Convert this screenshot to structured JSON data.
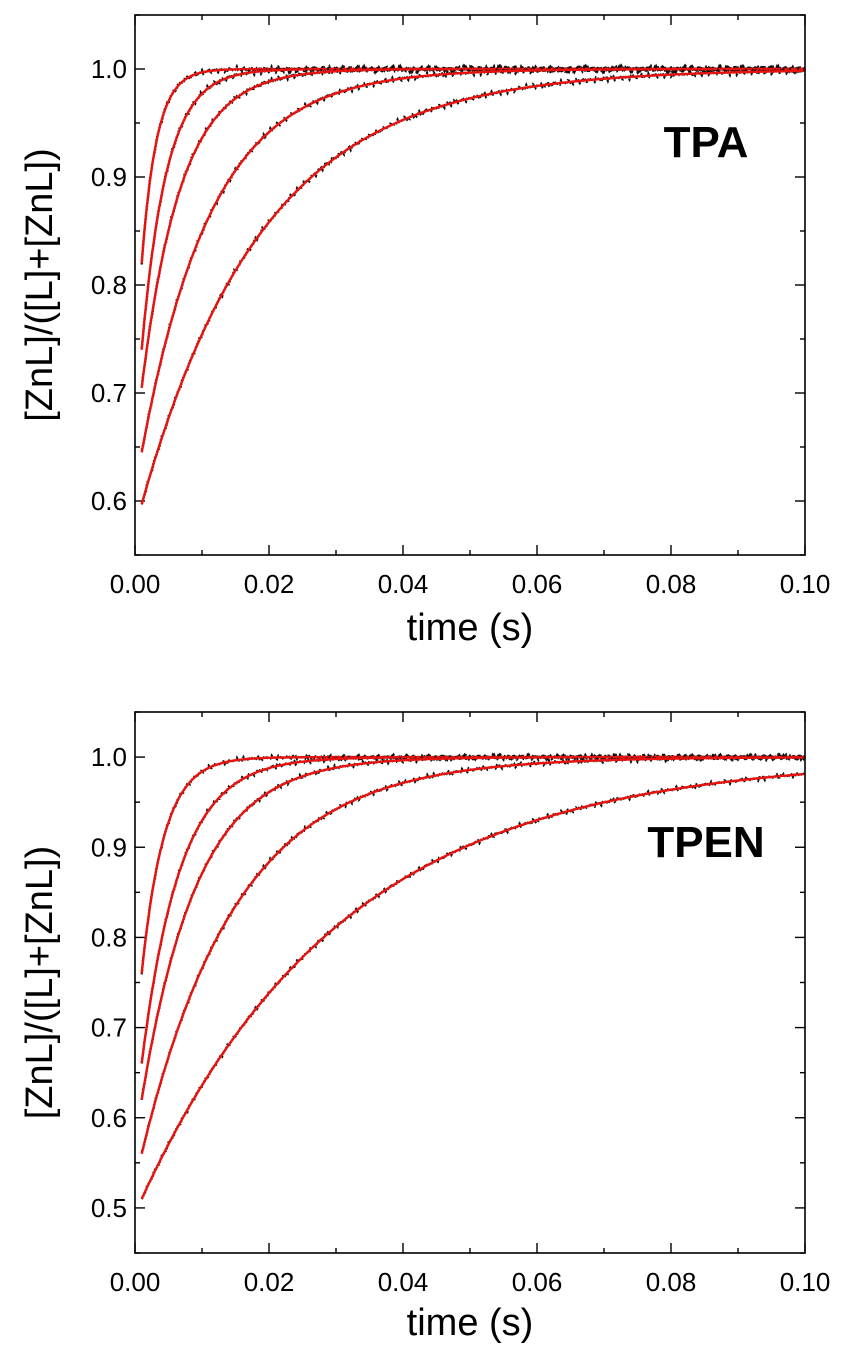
{
  "chart_data": [
    {
      "type": "line",
      "panel_label": "TPA",
      "xlabel": "time (s)",
      "ylabel": "[ZnL]/([L]+[ZnL])",
      "xlim": [
        0,
        0.1
      ],
      "ylim": [
        0.55,
        1.05
      ],
      "x_ticks": [
        0.0,
        0.02,
        0.04,
        0.06,
        0.08,
        0.1
      ],
      "x_tick_labels": [
        "0.00",
        "0.02",
        "0.04",
        "0.06",
        "0.08",
        "0.10"
      ],
      "y_ticks": [
        0.6,
        0.7,
        0.8,
        0.9,
        1.0
      ],
      "y_tick_labels": [
        "0.6",
        "0.7",
        "0.8",
        "0.9",
        "1.0"
      ],
      "grid": false,
      "colors": {
        "fit": "#e8130f",
        "data": "#111111"
      },
      "series": [
        {
          "y0": 0.82,
          "k": 450,
          "x": [
            0.001,
            0.002,
            0.003,
            0.005,
            0.007,
            0.01,
            0.015,
            0.02,
            0.04,
            0.06,
            0.08,
            0.1
          ],
          "y": [
            0.82,
            0.886,
            0.927,
            0.971,
            0.989,
            0.997,
            1.0,
            1.0,
            1.0,
            1.0,
            1.0,
            1.0
          ]
        },
        {
          "y0": 0.74,
          "k": 270,
          "x": [
            0.001,
            0.002,
            0.003,
            0.005,
            0.007,
            0.01,
            0.015,
            0.02,
            0.04,
            0.06,
            0.08,
            0.1
          ],
          "y": [
            0.74,
            0.804,
            0.852,
            0.916,
            0.953,
            0.982,
            0.996,
            0.999,
            1.0,
            1.0,
            1.0,
            1.0
          ]
        },
        {
          "y0": 0.705,
          "k": 170,
          "x": [
            0.001,
            0.002,
            0.003,
            0.005,
            0.007,
            0.01,
            0.015,
            0.02,
            0.04,
            0.06,
            0.08,
            0.1
          ],
          "y": [
            0.705,
            0.751,
            0.79,
            0.85,
            0.893,
            0.936,
            0.976,
            0.991,
            1.0,
            1.0,
            1.0,
            1.0
          ]
        },
        {
          "y0": 0.645,
          "k": 95,
          "x": [
            0.001,
            0.002,
            0.003,
            0.005,
            0.007,
            0.01,
            0.015,
            0.02,
            0.04,
            0.06,
            0.08,
            0.1
          ],
          "y": [
            0.645,
            0.678,
            0.708,
            0.761,
            0.805,
            0.857,
            0.918,
            0.952,
            0.995,
            0.999,
            1.0,
            1.0
          ]
        },
        {
          "y0": 0.597,
          "k": 55,
          "x": [
            0.001,
            0.002,
            0.003,
            0.005,
            0.007,
            0.01,
            0.015,
            0.02,
            0.04,
            0.06,
            0.08,
            0.1
          ],
          "y": [
            0.597,
            0.621,
            0.643,
            0.684,
            0.721,
            0.769,
            0.834,
            0.881,
            0.965,
            0.989,
            0.997,
            0.999
          ]
        }
      ]
    },
    {
      "type": "line",
      "panel_label": "TPEN",
      "xlabel": "time (s)",
      "ylabel": "[ZnL]/([L]+[ZnL])",
      "xlim": [
        0,
        0.1
      ],
      "ylim": [
        0.45,
        1.05
      ],
      "x_ticks": [
        0.0,
        0.02,
        0.04,
        0.06,
        0.08,
        0.1
      ],
      "x_tick_labels": [
        "0.00",
        "0.02",
        "0.04",
        "0.06",
        "0.08",
        "0.10"
      ],
      "y_ticks": [
        0.5,
        0.6,
        0.7,
        0.8,
        0.9,
        1.0
      ],
      "y_tick_labels": [
        "0.5",
        "0.6",
        "0.7",
        "0.8",
        "0.9",
        "1.0"
      ],
      "grid": false,
      "colors": {
        "fit": "#e8130f",
        "data": "#111111"
      },
      "series": [
        {
          "y0": 0.76,
          "k": 300,
          "x": [
            0.001,
            0.002,
            0.003,
            0.005,
            0.007,
            0.01,
            0.015,
            0.02,
            0.04,
            0.06,
            0.08,
            0.1
          ],
          "y": [
            0.76,
            0.822,
            0.868,
            0.927,
            0.96,
            0.986,
            0.997,
            0.999,
            1.0,
            1.0,
            1.0,
            1.0
          ]
        },
        {
          "y0": 0.66,
          "k": 175,
          "x": [
            0.001,
            0.002,
            0.003,
            0.005,
            0.007,
            0.01,
            0.015,
            0.02,
            0.04,
            0.06,
            0.08,
            0.1
          ],
          "y": [
            0.66,
            0.715,
            0.761,
            0.832,
            0.882,
            0.932,
            0.975,
            0.991,
            1.0,
            1.0,
            1.0,
            1.0
          ]
        },
        {
          "y0": 0.62,
          "k": 120,
          "x": [
            0.001,
            0.002,
            0.003,
            0.005,
            0.007,
            0.01,
            0.015,
            0.02,
            0.04,
            0.06,
            0.08,
            0.1
          ],
          "y": [
            0.62,
            0.663,
            0.701,
            0.766,
            0.818,
            0.877,
            0.938,
            0.969,
            0.998,
            1.0,
            1.0,
            1.0
          ]
        },
        {
          "y0": 0.56,
          "k": 70,
          "x": [
            0.001,
            0.002,
            0.003,
            0.005,
            0.007,
            0.01,
            0.015,
            0.02,
            0.04,
            0.06,
            0.08,
            0.1
          ],
          "y": [
            0.56,
            0.59,
            0.618,
            0.669,
            0.713,
            0.769,
            0.842,
            0.891,
            0.973,
            0.993,
            0.998,
            1.0
          ]
        },
        {
          "y0": 0.51,
          "k": 33,
          "x": [
            0.001,
            0.002,
            0.003,
            0.005,
            0.007,
            0.01,
            0.015,
            0.02,
            0.04,
            0.06,
            0.08,
            0.1
          ],
          "y": [
            0.51,
            0.526,
            0.541,
            0.571,
            0.599,
            0.637,
            0.694,
            0.743,
            0.865,
            0.928,
            0.963,
            0.98
          ]
        }
      ]
    }
  ]
}
